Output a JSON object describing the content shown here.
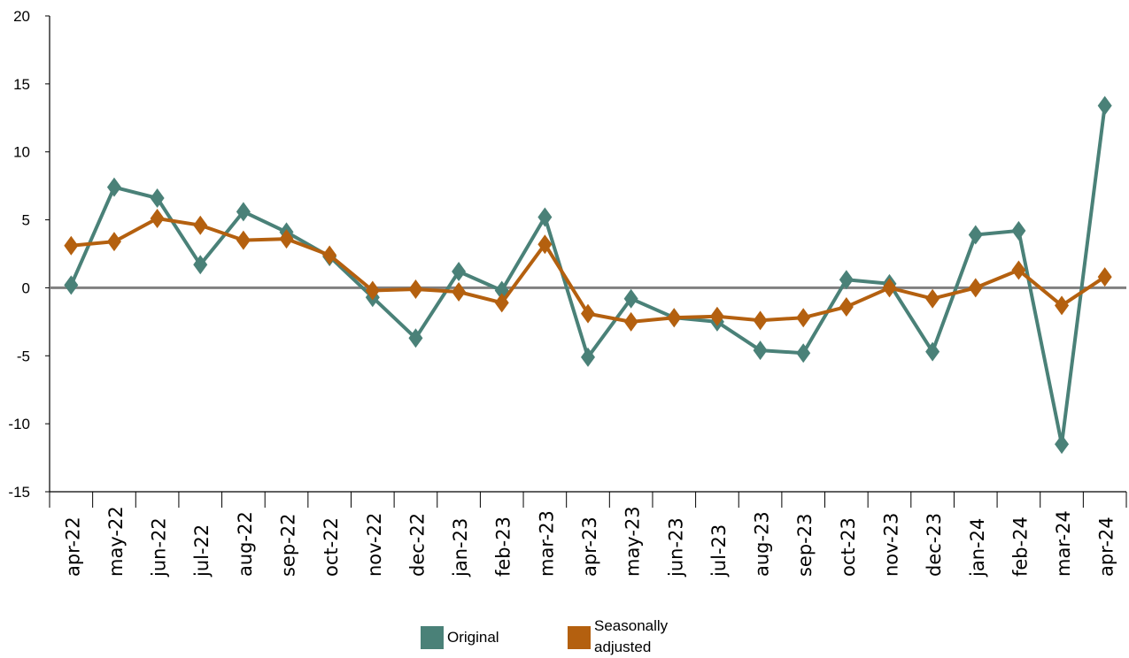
{
  "chart_data": {
    "type": "line",
    "title": "",
    "xlabel": "",
    "ylabel": "",
    "ylim": [
      -15,
      20
    ],
    "yticks": [
      20,
      15,
      10,
      5,
      0,
      -5,
      -10,
      -15
    ],
    "grid": false,
    "legend_position": "bottom",
    "categories": [
      "apr-22",
      "may-22",
      "jun-22",
      "jul-22",
      "aug-22",
      "sep-22",
      "oct-22",
      "nov-22",
      "dec-22",
      "jan-23",
      "feb-23",
      "mar-23",
      "apr-23",
      "may-23",
      "jun-23",
      "jul-23",
      "aug-23",
      "sep-23",
      "oct-23",
      "nov-23",
      "dec-23",
      "jan-24",
      "feb-24",
      "mar-24",
      "apr-24"
    ],
    "series": [
      {
        "name": "Original",
        "color": "#4a8178",
        "values": [
          0.2,
          7.4,
          6.6,
          1.7,
          5.6,
          4.1,
          2.3,
          -0.7,
          -3.7,
          1.2,
          -0.2,
          5.2,
          -5.1,
          -0.8,
          -2.2,
          -2.5,
          -4.6,
          -4.8,
          0.6,
          0.3,
          -4.7,
          3.9,
          4.2,
          -11.5,
          13.4
        ]
      },
      {
        "name": "Seasonally adjusted",
        "color": "#b4600f",
        "values": [
          3.1,
          3.4,
          5.1,
          4.6,
          3.5,
          3.6,
          2.4,
          -0.2,
          -0.1,
          -0.3,
          -1.1,
          3.2,
          -1.9,
          -2.5,
          -2.2,
          -2.1,
          -2.4,
          -2.2,
          -1.4,
          0.0,
          -0.8,
          0.0,
          1.3,
          -1.3,
          0.8
        ]
      }
    ]
  },
  "legend": {
    "original_label": "Original",
    "seasonal_label_line1": "Seasonally",
    "seasonal_label_line2": "adjusted"
  },
  "colors": {
    "original": "#4a8178",
    "seasonal": "#b4600f",
    "zero_line": "#808080",
    "axis": "#000000"
  }
}
